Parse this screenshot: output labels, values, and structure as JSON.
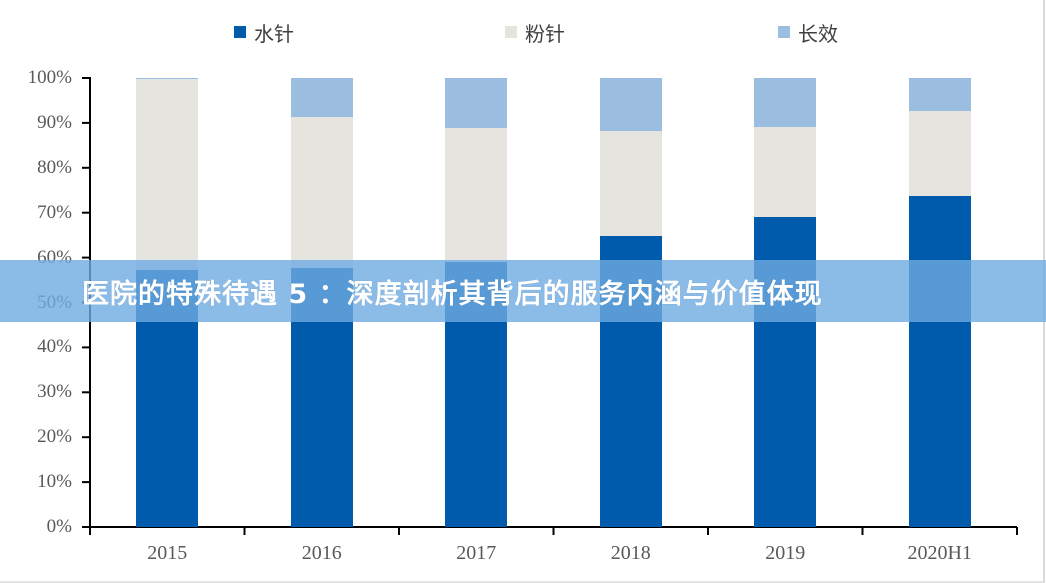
{
  "banner": {
    "text": "医院的特殊待遇 5 ：深度剖析其背后的服务内涵与价值体现"
  },
  "legend": [
    {
      "label": "水针",
      "color": "#005bac"
    },
    {
      "label": "粉针",
      "color": "#e6e4df"
    },
    {
      "label": "长效",
      "color": "#9abde0"
    }
  ],
  "chart_data": {
    "type": "bar",
    "stacked": true,
    "percent_stacked": true,
    "title": "",
    "xlabel": "",
    "ylabel": "",
    "ylim": [
      0,
      100
    ],
    "yticks": [
      "0%",
      "10%",
      "20%",
      "30%",
      "40%",
      "50%",
      "60%",
      "70%",
      "80%",
      "90%",
      "100%"
    ],
    "categories": [
      "2015",
      "2016",
      "2017",
      "2018",
      "2019",
      "2020H1"
    ],
    "series": [
      {
        "name": "水针",
        "color": "#005bac",
        "values": [
          57.2,
          57.7,
          59.0,
          64.9,
          69.0,
          73.7
        ]
      },
      {
        "name": "粉针",
        "color": "#e6e4df",
        "values": [
          42.6,
          33.6,
          29.9,
          23.3,
          20.0,
          18.9
        ]
      },
      {
        "name": "长效",
        "color": "#9abde0",
        "values": [
          0.2,
          8.7,
          11.1,
          11.8,
          11.0,
          7.4
        ]
      }
    ],
    "legend_position": "top",
    "grid": false
  }
}
